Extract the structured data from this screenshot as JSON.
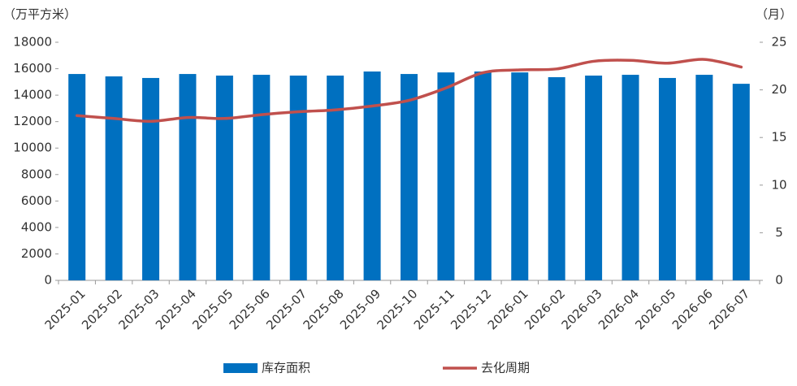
{
  "chart_data": {
    "type": "bar-line",
    "y_label": "（万平方米）",
    "y2_label": "（月）",
    "categories": [
      "2025-01",
      "2025-02",
      "2025-03",
      "2025-04",
      "2025-05",
      "2025-06",
      "2025-07",
      "2025-08",
      "2025-09",
      "2025-10",
      "2025-11",
      "2025-12",
      "2026-01",
      "2026-02",
      "2026-03",
      "2026-04",
      "2026-05",
      "2026-06",
      "2026-07"
    ],
    "series": [
      {
        "name": "库存面积",
        "type": "bar",
        "color": "#0070c0",
        "values": [
          15600,
          15420,
          15300,
          15600,
          15480,
          15540,
          15480,
          15480,
          15790,
          15600,
          15720,
          15790,
          15720,
          15360,
          15480,
          15540,
          15300,
          15540,
          14860
        ]
      },
      {
        "name": "去化周期",
        "type": "line",
        "axis": "y2",
        "color": "#c0504d",
        "values": [
          17.3,
          17.0,
          16.7,
          17.1,
          17.0,
          17.4,
          17.7,
          17.9,
          18.3,
          18.9,
          20.2,
          21.8,
          22.1,
          22.2,
          23.0,
          23.1,
          22.8,
          23.2,
          22.4
        ]
      }
    ],
    "ylim": [
      0,
      18000
    ],
    "yticks": [
      0,
      2000,
      4000,
      6000,
      8000,
      10000,
      12000,
      14000,
      16000,
      18000
    ],
    "y2lim": [
      0,
      25
    ],
    "y2ticks": [
      0,
      5,
      10,
      15,
      20,
      25
    ],
    "grid": false,
    "legend": "bottom"
  }
}
